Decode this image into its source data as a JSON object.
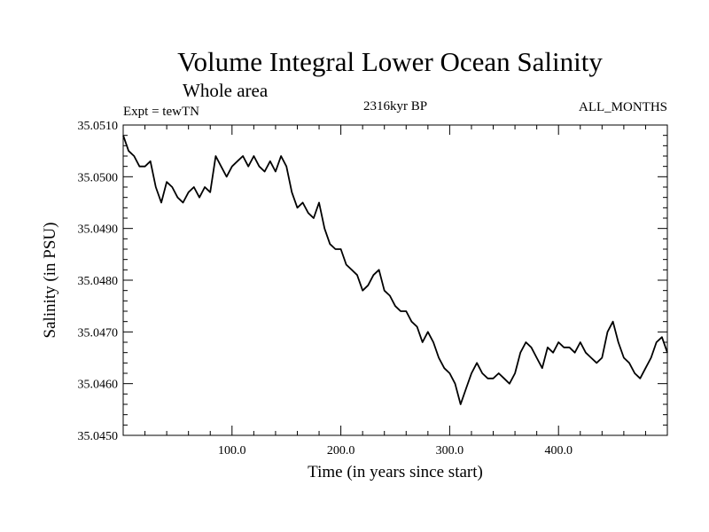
{
  "chart_data": {
    "type": "line",
    "title": "Volume Integral Lower Ocean Salinity",
    "subtitle": "Whole area",
    "experiment": "Expt = tewTN",
    "period": "2316kyr BP",
    "months": "ALL_MONTHS",
    "xlabel": "Time (in years since start)",
    "ylabel": "Salinity (in PSU)",
    "xlim": [
      0,
      500
    ],
    "ylim": [
      35.045,
      35.051
    ],
    "x_ticks": [
      100,
      200,
      300,
      400
    ],
    "x_tick_labels": [
      "100.0",
      "200.0",
      "300.0",
      "400.0"
    ],
    "y_ticks": [
      35.045,
      35.046,
      35.047,
      35.048,
      35.049,
      35.05,
      35.051
    ],
    "y_tick_labels": [
      "35.0450",
      "35.0460",
      "35.0470",
      "35.0480",
      "35.0490",
      "35.0500",
      "35.0510"
    ],
    "series": [
      {
        "name": "Salinity",
        "color": "#000000",
        "x": [
          0,
          5,
          10,
          15,
          20,
          25,
          30,
          35,
          40,
          45,
          50,
          55,
          60,
          65,
          70,
          75,
          80,
          85,
          90,
          95,
          100,
          105,
          110,
          115,
          120,
          125,
          130,
          135,
          140,
          145,
          150,
          155,
          160,
          165,
          170,
          175,
          180,
          185,
          190,
          195,
          200,
          205,
          210,
          215,
          220,
          225,
          230,
          235,
          240,
          245,
          250,
          255,
          260,
          265,
          270,
          275,
          280,
          285,
          290,
          295,
          300,
          305,
          310,
          315,
          320,
          325,
          330,
          335,
          340,
          345,
          350,
          355,
          360,
          365,
          370,
          375,
          380,
          385,
          390,
          395,
          400,
          405,
          410,
          415,
          420,
          425,
          430,
          435,
          440,
          445,
          450,
          455,
          460,
          465,
          470,
          475,
          480,
          485,
          490,
          495,
          500
        ],
        "values": [
          35.0508,
          35.0505,
          35.0504,
          35.0502,
          35.0502,
          35.0503,
          35.0498,
          35.0495,
          35.0499,
          35.0498,
          35.0496,
          35.0495,
          35.0497,
          35.0498,
          35.0496,
          35.0498,
          35.0497,
          35.0504,
          35.0502,
          35.05,
          35.0502,
          35.0503,
          35.0504,
          35.0502,
          35.0504,
          35.0502,
          35.0501,
          35.0503,
          35.0501,
          35.0504,
          35.0502,
          35.0497,
          35.0494,
          35.0495,
          35.0493,
          35.0492,
          35.0495,
          35.049,
          35.0487,
          35.0486,
          35.0486,
          35.0483,
          35.0482,
          35.0481,
          35.0478,
          35.0479,
          35.0481,
          35.0482,
          35.0478,
          35.0477,
          35.0475,
          35.0474,
          35.0474,
          35.0472,
          35.0471,
          35.0468,
          35.047,
          35.0468,
          35.0465,
          35.0463,
          35.0462,
          35.046,
          35.0456,
          35.0459,
          35.0462,
          35.0464,
          35.0462,
          35.0461,
          35.0461,
          35.0462,
          35.0461,
          35.046,
          35.0462,
          35.0466,
          35.0468,
          35.0467,
          35.0465,
          35.0463,
          35.0467,
          35.0466,
          35.0468,
          35.0467,
          35.0467,
          35.0466,
          35.0468,
          35.0466,
          35.0465,
          35.0464,
          35.0465,
          35.047,
          35.0472,
          35.0468,
          35.0465,
          35.0464,
          35.0462,
          35.0461,
          35.0463,
          35.0465,
          35.0468,
          35.0469,
          35.0466
        ]
      }
    ]
  }
}
